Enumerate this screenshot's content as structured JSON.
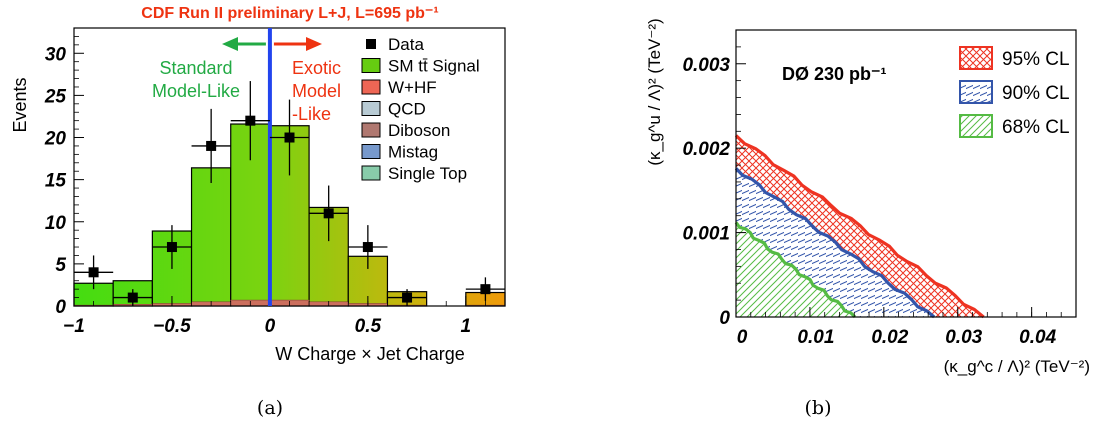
{
  "chart_data": [
    {
      "type": "bar",
      "title": "CDF Run II preliminary L+J, L=695 pb⁻¹",
      "xlabel": "W Charge × Jet Charge",
      "ylabel": "Events",
      "xlim": [
        -1,
        1.2
      ],
      "ylim": [
        0,
        33
      ],
      "xticks": [
        "−1",
        "−0.5",
        "0",
        "0.5",
        "1"
      ],
      "xtick_values": [
        -1,
        -0.5,
        0,
        0.5,
        1
      ],
      "yticks": [
        "0",
        "5",
        "10",
        "15",
        "20",
        "25",
        "30"
      ],
      "ytick_values": [
        0,
        5,
        10,
        15,
        20,
        25,
        30
      ],
      "bin_edges": [
        -1.0,
        -0.8,
        -0.6,
        -0.4,
        -0.2,
        0.0,
        0.2,
        0.4,
        0.6,
        0.8,
        1.0,
        1.2
      ],
      "signal_total": [
        2.7,
        3.0,
        8.9,
        16.4,
        21.6,
        21.4,
        11.7,
        5.9,
        1.7,
        0,
        1.6
      ],
      "background": [
        0.1,
        0.2,
        0.3,
        0.5,
        0.7,
        0.7,
        0.5,
        0.3,
        0.1,
        0,
        0.1
      ],
      "data": {
        "x": [
          -0.9,
          -0.7,
          -0.5,
          -0.3,
          -0.1,
          0.1,
          0.3,
          0.5,
          0.7,
          1.1
        ],
        "y": [
          4,
          1,
          7,
          19,
          22,
          20,
          11,
          7,
          1,
          2
        ],
        "err": [
          2,
          1,
          2.6,
          4.4,
          4.7,
          4.5,
          3.3,
          2.6,
          1,
          1.4
        ]
      },
      "divider_x": 0,
      "annotations": {
        "left_text": [
          "Standard",
          "Model-Like"
        ],
        "right_text": [
          "Exotic",
          "Model",
          "-Like"
        ],
        "left_color": "#22aa44",
        "right_color": "#ee3311"
      },
      "legend_position": "top-right",
      "legend": [
        {
          "label": "Data",
          "kind": "marker",
          "color": "#000000"
        },
        {
          "label": "SM tt̄ Signal",
          "kind": "box",
          "color": "#66cc11"
        },
        {
          "label": "W+HF",
          "kind": "box",
          "color": "#ee6655"
        },
        {
          "label": "QCD",
          "kind": "box",
          "color": "#b8cbd4"
        },
        {
          "label": "Diboson",
          "kind": "box",
          "color": "#b07870"
        },
        {
          "label": "Mistag",
          "kind": "box",
          "color": "#7799cc"
        },
        {
          "label": "Single Top",
          "kind": "box",
          "color": "#88ccaa"
        }
      ],
      "caption": "(a)"
    },
    {
      "type": "area",
      "title": "DØ 230 pb⁻¹",
      "xlabel": "(κ_g^c / Λ)² (TeV⁻²)",
      "ylabel": "(κ_g^u / Λ)² (TeV⁻²)",
      "xlim": [
        0,
        0.046
      ],
      "ylim": [
        0,
        0.0034
      ],
      "xticks": [
        "0",
        "0.01",
        "0.02",
        "0.03",
        "0.04"
      ],
      "xtick_values": [
        0,
        0.01,
        0.02,
        0.03,
        0.04
      ],
      "yticks": [
        "0",
        "0.001",
        "0.002",
        "0.003"
      ],
      "ytick_values": [
        0,
        0.001,
        0.002,
        0.003
      ],
      "series": [
        {
          "name": "95% CL",
          "x_intercept": 0.0335,
          "y_intercept": 0.00215,
          "color": "#ee3322",
          "hatch": "cross"
        },
        {
          "name": "90% CL",
          "x_intercept": 0.0268,
          "y_intercept": 0.00176,
          "color": "#3355aa",
          "hatch": "diagonal-down"
        },
        {
          "name": "68% CL",
          "x_intercept": 0.0161,
          "y_intercept": 0.00112,
          "color": "#55bb44",
          "hatch": "diagonal-up"
        }
      ],
      "legend_position": "top-right",
      "caption": "(b)"
    }
  ]
}
